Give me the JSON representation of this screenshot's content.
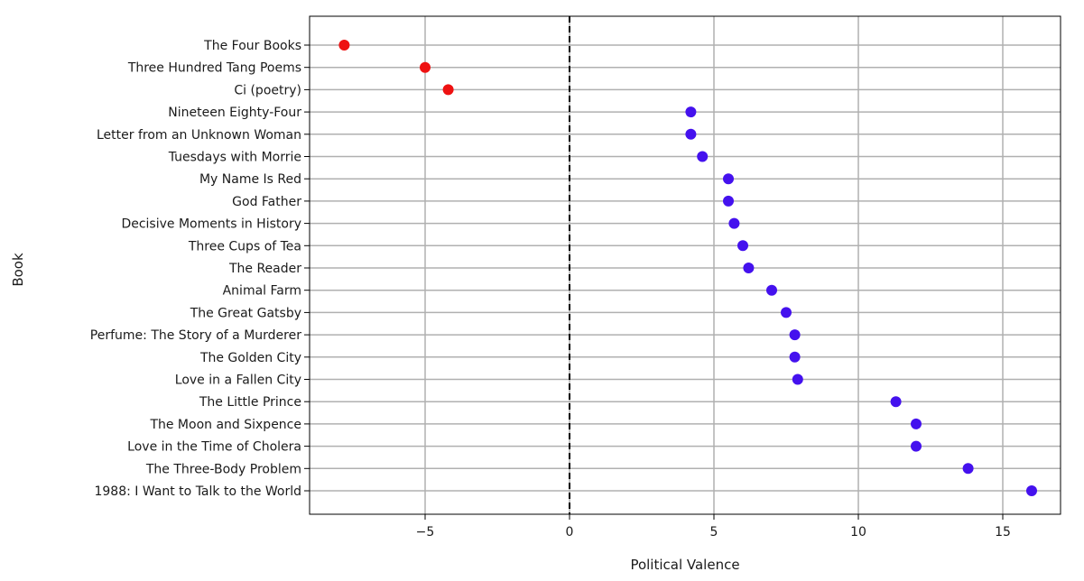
{
  "chart_data": {
    "type": "scatter",
    "title": "",
    "xlabel": "Political Valence",
    "ylabel": "Book",
    "xlim": [
      -9.0,
      17.0
    ],
    "xticks": [
      -5,
      0,
      5,
      10,
      15
    ],
    "xtick_labels": [
      "−5",
      "0",
      "5",
      "10",
      "15"
    ],
    "grid": true,
    "reference_line": {
      "x": 0,
      "style": "dashed",
      "color": "#000000"
    },
    "colors": {
      "negative": "#ee1111",
      "positive": "#4411ee",
      "grid": "#b0b0b0"
    },
    "categories": [
      "The Four Books",
      "Three Hundred Tang Poems",
      "Ci (poetry)",
      "Nineteen Eighty-Four",
      "Letter from an Unknown Woman",
      "Tuesdays with Morrie",
      "My Name Is Red",
      "God Father",
      "Decisive Moments in History",
      "Three Cups of Tea",
      "The Reader",
      "Animal Farm",
      "The Great Gatsby",
      "Perfume: The Story of a Murderer",
      "The Golden City",
      "Love in a Fallen City",
      "The Little Prince",
      "The Moon and Sixpence",
      "Love in the Time of Cholera",
      "The Three-Body Problem",
      "1988: I Want to Talk to the World"
    ],
    "values": [
      -7.8,
      -5.0,
      -4.2,
      4.2,
      4.2,
      4.6,
      5.5,
      5.5,
      5.7,
      6.0,
      6.2,
      7.0,
      7.5,
      7.8,
      7.8,
      7.9,
      11.3,
      12.0,
      12.0,
      13.8,
      16.0
    ]
  }
}
